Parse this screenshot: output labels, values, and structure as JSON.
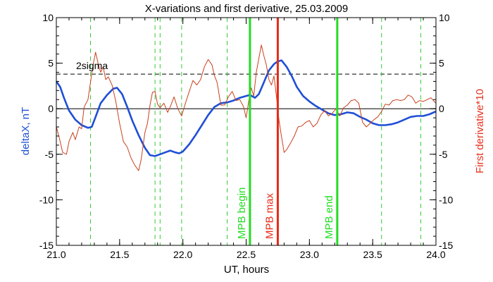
{
  "chart_data": {
    "type": "line",
    "title": "X-variations and first derivative, 25.03.2009",
    "xlabel": "UT, hours",
    "ylabel_left": "deltaX, nT",
    "ylabel_right": "First derivative*10",
    "xlim": [
      21.0,
      24.0
    ],
    "ylim_left": [
      -15,
      10
    ],
    "ylim_right": [
      -15,
      10
    ],
    "x_ticks": [
      "21.0",
      "21.5",
      "22.0",
      "22.5",
      "23.0",
      "23.5",
      "24.0"
    ],
    "y_ticks_left": [
      "-15",
      "-10",
      "-5",
      "0",
      "5",
      "10"
    ],
    "y_ticks_right": [
      "-15",
      "-10",
      "-5",
      "0",
      "5",
      "10"
    ],
    "threshold": {
      "label": "2sigma",
      "value": 3.8
    },
    "zero_line": 0,
    "colors": {
      "deltaX": "#1f4fd6",
      "derivative": "#c8401e",
      "mpb_edge": "#22dd22",
      "mpb_max": "#e82a16",
      "dashed_green": "#33cc33"
    },
    "dashed_verticals": [
      21.27,
      21.78,
      21.82,
      21.99,
      22.35,
      23.57,
      23.88
    ],
    "markers": [
      {
        "label": "MPB begin",
        "x": 22.53,
        "color": "#22dd22"
      },
      {
        "label": "MPB max",
        "x": 22.75,
        "color": "#e82a16"
      },
      {
        "label": "MPB end",
        "x": 23.22,
        "color": "#22dd22"
      }
    ],
    "series": [
      {
        "key": "deltaX",
        "axis": "left",
        "x": [
          21.0,
          21.03,
          21.06,
          21.1,
          21.15,
          21.2,
          21.25,
          21.28,
          21.31,
          21.35,
          21.4,
          21.45,
          21.48,
          21.52,
          21.56,
          21.6,
          21.65,
          21.7,
          21.74,
          21.78,
          21.82,
          21.86,
          21.9,
          21.94,
          21.97,
          22.0,
          22.05,
          22.1,
          22.15,
          22.2,
          22.25,
          22.3,
          22.35,
          22.4,
          22.45,
          22.5,
          22.53,
          22.57,
          22.6,
          22.64,
          22.68,
          22.72,
          22.75,
          22.78,
          22.82,
          22.86,
          22.9,
          22.95,
          23.0,
          23.05,
          23.1,
          23.15,
          23.2,
          23.25,
          23.3,
          23.35,
          23.4,
          23.45,
          23.5,
          23.55,
          23.6,
          23.65,
          23.7,
          23.75,
          23.8,
          23.85,
          23.9,
          23.95,
          24.0
        ],
        "y": [
          3.0,
          2.4,
          1.2,
          -0.2,
          -1.2,
          -1.8,
          -2.1,
          -2.0,
          -0.9,
          0.6,
          1.5,
          2.2,
          2.3,
          1.6,
          0.2,
          -1.3,
          -2.9,
          -4.3,
          -5.1,
          -5.2,
          -5.0,
          -4.8,
          -4.6,
          -4.8,
          -4.9,
          -4.7,
          -3.9,
          -2.9,
          -1.8,
          -0.7,
          0.2,
          0.6,
          0.7,
          0.9,
          1.2,
          1.4,
          1.5,
          1.2,
          1.6,
          2.9,
          4.2,
          4.9,
          5.2,
          5.3,
          4.6,
          3.6,
          2.4,
          1.4,
          0.8,
          0.3,
          -0.1,
          -0.5,
          -0.7,
          -0.6,
          -0.4,
          -0.5,
          -0.9,
          -1.2,
          -1.6,
          -1.8,
          -1.8,
          -1.7,
          -1.5,
          -1.2,
          -0.9,
          -0.8,
          -0.8,
          -0.6,
          -0.3
        ]
      },
      {
        "key": "derivative",
        "axis": "right",
        "x": [
          21.0,
          21.02,
          21.05,
          21.08,
          21.1,
          21.13,
          21.15,
          21.18,
          21.2,
          21.22,
          21.25,
          21.27,
          21.29,
          21.31,
          21.33,
          21.35,
          21.37,
          21.39,
          21.41,
          21.44,
          21.47,
          21.5,
          21.53,
          21.56,
          21.59,
          21.62,
          21.65,
          21.67,
          21.7,
          21.72,
          21.74,
          21.76,
          21.78,
          21.8,
          21.82,
          21.85,
          21.88,
          21.9,
          21.93,
          21.96,
          21.99,
          22.02,
          22.05,
          22.08,
          22.11,
          22.14,
          22.17,
          22.2,
          22.23,
          22.25,
          22.27,
          22.3,
          22.33,
          22.36,
          22.39,
          22.42,
          22.45,
          22.48,
          22.5,
          22.52,
          22.54,
          22.56,
          22.58,
          22.6,
          22.62,
          22.64,
          22.66,
          22.68,
          22.7,
          22.72,
          22.74,
          22.76,
          22.78,
          22.8,
          22.82,
          22.85,
          22.88,
          22.91,
          22.94,
          22.97,
          23.0,
          23.03,
          23.06,
          23.09,
          23.12,
          23.15,
          23.18,
          23.21,
          23.24,
          23.27,
          23.3,
          23.33,
          23.36,
          23.39,
          23.42,
          23.45,
          23.48,
          23.51,
          23.54,
          23.57,
          23.6,
          23.63,
          23.66,
          23.69,
          23.72,
          23.75,
          23.78,
          23.81,
          23.84,
          23.87,
          23.9,
          23.93,
          23.96,
          24.0
        ],
        "y": [
          -2.0,
          -3.0,
          -4.8,
          -5.0,
          -3.6,
          -2.6,
          -3.4,
          -2.0,
          -2.2,
          0.2,
          1.0,
          2.9,
          4.8,
          6.2,
          5.0,
          4.0,
          4.6,
          3.2,
          3.5,
          2.6,
          0.8,
          -1.6,
          -3.6,
          -4.2,
          -5.4,
          -6.2,
          -6.8,
          -5.6,
          -2.6,
          -1.6,
          0.4,
          1.8,
          1.9,
          0.5,
          0.1,
          0.6,
          -0.4,
          0.2,
          1.3,
          0.0,
          -0.8,
          0.6,
          1.9,
          3.1,
          2.6,
          3.2,
          4.6,
          5.4,
          4.8,
          3.6,
          2.9,
          0.4,
          0.4,
          1.3,
          1.9,
          0.9,
          1.0,
          0.2,
          -1.0,
          0.8,
          2.3,
          1.4,
          4.0,
          5.5,
          7.0,
          5.8,
          4.8,
          3.2,
          2.6,
          3.6,
          1.3,
          -1.3,
          -3.1,
          -4.8,
          -4.5,
          -3.8,
          -3.0,
          -2.0,
          -1.9,
          -1.5,
          -1.3,
          -2.0,
          -1.6,
          -0.7,
          -0.2,
          -0.8,
          -0.5,
          0.0,
          -0.8,
          0.1,
          0.4,
          0.9,
          1.0,
          0.6,
          -1.5,
          -2.0,
          -1.6,
          -1.2,
          -0.9,
          -0.3,
          0.5,
          0.4,
          0.9,
          1.0,
          0.9,
          1.0,
          1.5,
          1.3,
          0.6,
          0.9,
          0.8,
          1.0,
          1.2,
          0.6
        ]
      }
    ]
  }
}
